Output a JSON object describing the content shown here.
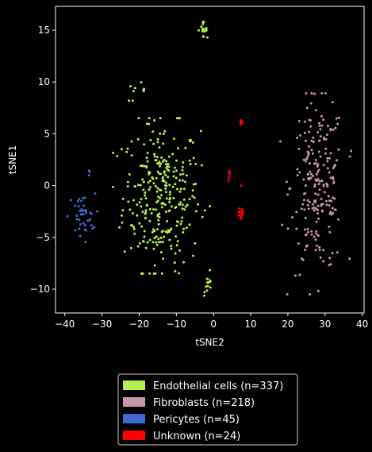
{
  "chart_data": {
    "type": "scatter",
    "title": "",
    "xlabel": "tSNE2",
    "ylabel": "tSNE1",
    "xlim": [
      -42.5,
      40.5
    ],
    "ylim": [
      -12.3,
      17.3
    ],
    "xticks": [
      -40,
      -30,
      -20,
      -10,
      0,
      10,
      20,
      30,
      40
    ],
    "yticks": [
      -10,
      -5,
      0,
      5,
      10,
      15
    ],
    "background": "#000000",
    "foreground": "#ffffff",
    "legend_position": "below",
    "series": [
      {
        "name": "Endothelial cells (n=337)",
        "color": "#b5ef55",
        "clusters": [
          {
            "n": 300,
            "x_range": [
              -27,
              -1
            ],
            "y_range": [
              -8.5,
              6.5
            ],
            "center": [
              -14,
              -1
            ],
            "spread": [
              5.2,
              3.6
            ]
          },
          {
            "n": 16,
            "x_range": [
              -4.5,
              -1.5
            ],
            "y_range": [
              14.3,
              15.8
            ],
            "center": [
              -3,
              15.1
            ],
            "spread": [
              0.6,
              0.4
            ]
          },
          {
            "n": 9,
            "x_range": [
              -24,
              -17
            ],
            "y_range": [
              8.2,
              10.5
            ],
            "center": [
              -20,
              8.8
            ],
            "spread": [
              2,
              0.6
            ]
          },
          {
            "n": 12,
            "x_range": [
              -2.5,
              -0.5
            ],
            "y_range": [
              -10.7,
              -9
            ],
            "center": [
              -1.5,
              -9.7
            ],
            "spread": [
              0.6,
              0.5
            ]
          }
        ]
      },
      {
        "name": "Fibroblasts (n=218)",
        "color": "#c797a6",
        "clusters": [
          {
            "n": 218,
            "x_range": [
              18,
              37
            ],
            "y_range": [
              -10.5,
              8.9
            ],
            "center": [
              28,
              0
            ],
            "spread": [
              3.6,
              4.2
            ]
          }
        ]
      },
      {
        "name": "Pericytes (n=45)",
        "color": "#4169d0",
        "clusters": [
          {
            "n": 42,
            "x_range": [
              -39.5,
              -31
            ],
            "y_range": [
              -5.5,
              -0.2
            ],
            "center": [
              -35.5,
              -3
            ],
            "spread": [
              1.8,
              1.1
            ]
          },
          {
            "n": 3,
            "x_range": [
              -33.5,
              -32.8
            ],
            "y_range": [
              0.8,
              1.5
            ],
            "center": [
              -33.2,
              1.1
            ],
            "spread": [
              0.2,
              0.3
            ]
          }
        ]
      },
      {
        "name": "Unknown (n=24)",
        "color": "#ff0000",
        "points": [
          [
            7.3,
            6.3
          ],
          [
            7.5,
            6.1
          ],
          [
            7.2,
            6.0
          ],
          [
            7.4,
            5.9
          ],
          [
            7.6,
            6.2
          ],
          [
            4.1,
            1.4
          ],
          [
            4.3,
            1.1
          ],
          [
            4.2,
            0.8
          ],
          [
            4.4,
            1.3
          ],
          [
            4.0,
            0.5
          ],
          [
            7.4,
            0.0
          ],
          [
            6.9,
            -2.5
          ],
          [
            7.6,
            -2.4
          ],
          [
            7.2,
            -2.6
          ],
          [
            7.8,
            -2.7
          ],
          [
            6.7,
            -2.9
          ],
          [
            7.5,
            -3.1
          ],
          [
            8.0,
            -2.5
          ],
          [
            7.0,
            -2.2
          ],
          [
            7.3,
            -3.2
          ],
          [
            7.9,
            -2.8
          ],
          [
            6.8,
            -2.6
          ],
          [
            7.7,
            -2.3
          ],
          [
            7.3,
            -2.9
          ]
        ]
      }
    ]
  }
}
